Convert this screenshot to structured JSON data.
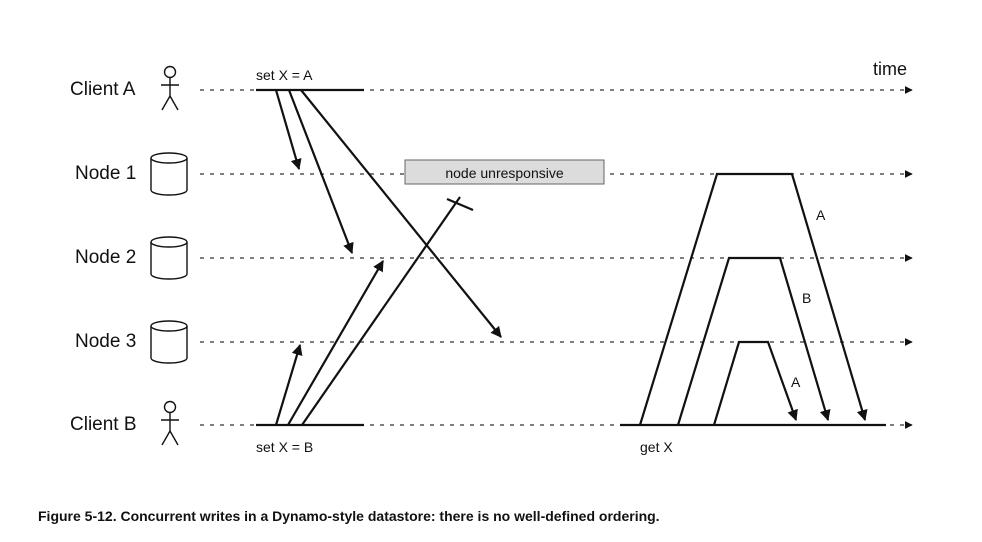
{
  "lanes": [
    {
      "id": "client-a",
      "label": "Client A",
      "icon": "person-icon"
    },
    {
      "id": "node-1",
      "label": "Node 1",
      "icon": "database-icon"
    },
    {
      "id": "node-2",
      "label": "Node 2",
      "icon": "database-icon"
    },
    {
      "id": "node-3",
      "label": "Node 3",
      "icon": "database-icon"
    },
    {
      "id": "client-b",
      "label": "Client B",
      "icon": "person-icon"
    }
  ],
  "time_label": "time",
  "labels": {
    "set_a": "set X = A",
    "set_b": "set X = B",
    "get_x": "get X",
    "unresponsive": "node unresponsive",
    "resp_node1": "A",
    "resp_node2": "B",
    "resp_node3": "A"
  },
  "caption": "Figure 5-12. Concurrent writes in a Dynamo-style datastore: there is no well-defined ordering."
}
